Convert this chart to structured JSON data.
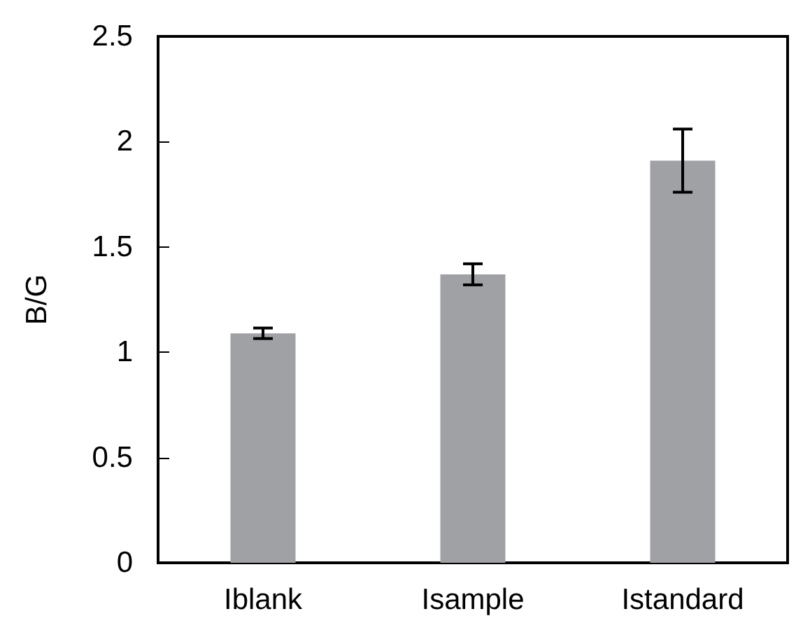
{
  "chart_data": {
    "type": "bar",
    "ylabel": "B/G",
    "categories": [
      "Iblank",
      "Isample",
      "Istandard"
    ],
    "values": [
      1.09,
      1.37,
      1.91
    ],
    "errors": [
      0.025,
      0.05,
      0.15
    ],
    "color": "#a0a1a5",
    "ylim": [
      0,
      2.5
    ],
    "yticks": [
      0,
      0.5,
      1,
      1.5,
      2,
      2.5
    ],
    "grid": false
  }
}
